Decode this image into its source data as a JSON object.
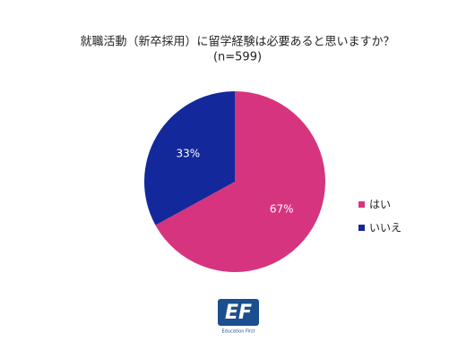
{
  "chart_data": {
    "type": "pie",
    "title": "就職活動（新卒採用）に留学経験は必要あると思いますか？",
    "subtitle": "(n=599)",
    "categories": [
      "はい",
      "いいえ"
    ],
    "values": [
      67,
      33
    ],
    "value_labels": [
      "67%",
      "33%"
    ],
    "colors": [
      "#d6347f",
      "#13289a"
    ],
    "legend": "right"
  },
  "logo": {
    "mark": "EF",
    "tagline": "Education First"
  }
}
